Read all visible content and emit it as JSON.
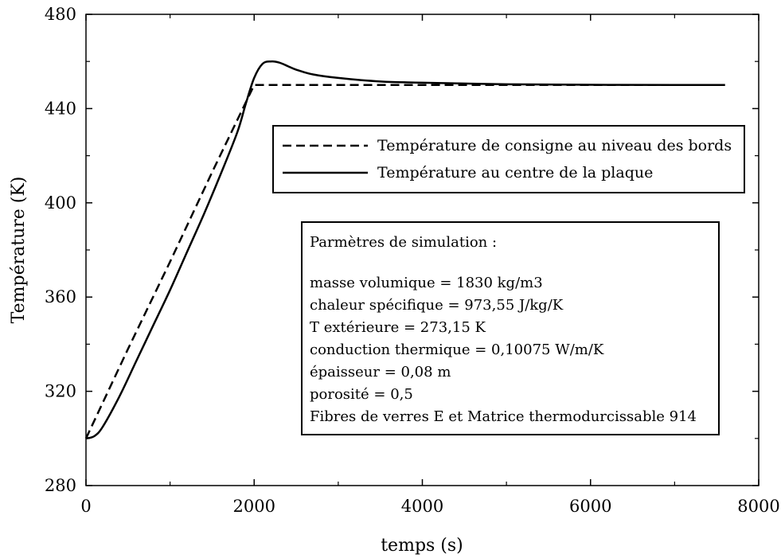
{
  "chart_data": {
    "type": "line",
    "title": "",
    "xlabel": "temps (s)",
    "ylabel": "Température (K)",
    "xlim": [
      0,
      8000
    ],
    "ylim": [
      280,
      480
    ],
    "xticks": [
      0,
      2000,
      4000,
      6000,
      8000
    ],
    "xtick_labels": [
      "0",
      "2000",
      "4000",
      "6000",
      "8000"
    ],
    "yticks": [
      280,
      320,
      360,
      400,
      440,
      480
    ],
    "ytick_labels": [
      "280",
      "320",
      "360",
      "400",
      "440",
      "480"
    ],
    "grid": false,
    "legend_position": "top-right",
    "series": [
      {
        "name": "Température de consigne au niveau des bords",
        "style": "dashed",
        "color": "#000000",
        "x": [
          0,
          500,
          1000,
          1500,
          2000,
          2500,
          3000,
          4000,
          5000,
          6000,
          7000,
          7600
        ],
        "y": [
          300,
          338,
          375,
          413,
          450,
          450,
          450,
          450,
          450,
          450,
          450,
          450
        ]
      },
      {
        "name": "Température au centre de la plaque",
        "style": "solid",
        "color": "#000000",
        "x": [
          0,
          100,
          200,
          400,
          600,
          800,
          1000,
          1200,
          1400,
          1600,
          1800,
          1900,
          2000,
          2100,
          2200,
          2300,
          2400,
          2500,
          2700,
          3000,
          3500,
          4000,
          5000,
          6000,
          7000,
          7600
        ],
        "y": [
          300,
          301,
          305,
          318,
          333,
          348,
          363,
          379,
          395,
          412,
          430,
          442,
          453,
          459,
          460,
          459.5,
          458,
          456.5,
          454.5,
          453,
          451.5,
          451,
          450.3,
          450.1,
          450,
          450
        ]
      }
    ]
  },
  "params_box": {
    "title": "Parmètres de simulation :",
    "lines": [
      "masse volumique = 1830 kg/m3",
      "chaleur spécifique = 973,55 J/kg/K",
      "T extérieure = 273,15 K",
      "conduction thermique = 0,10075 W/m/K",
      "épaisseur = 0,08 m",
      "porosité = 0,5",
      "Fibres de verres E et Matrice thermodurcissable 914"
    ]
  }
}
